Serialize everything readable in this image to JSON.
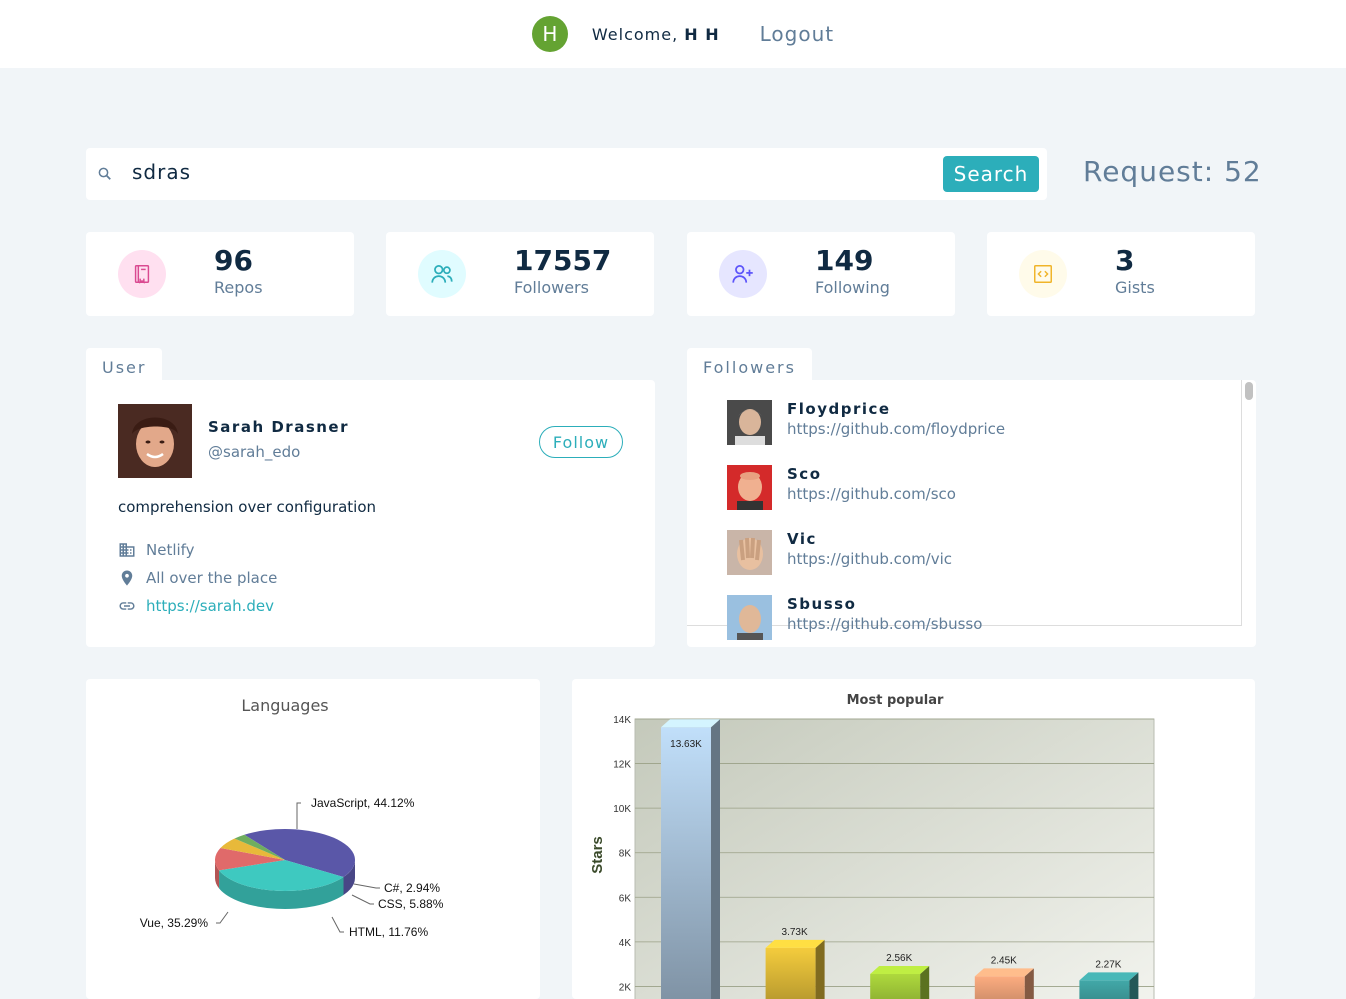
{
  "nav": {
    "avatar_letter": "H",
    "welcome_prefix": "Welcome,",
    "user_name": "H H",
    "logout_label": "Logout"
  },
  "search": {
    "value": "sdras",
    "button_label": "Search",
    "requests_label": "Request: 52"
  },
  "stats": [
    {
      "value": "96",
      "label": "Repos",
      "icon": "book-icon",
      "color": "#da4a91",
      "bg": "#ffe0f0"
    },
    {
      "value": "17557",
      "label": "Followers",
      "icon": "users-icon",
      "color": "#2caeba",
      "bg": "#e0fcff"
    },
    {
      "value": "149",
      "label": "Following",
      "icon": "user-plus-icon",
      "color": "#5d55fa",
      "bg": "#e6e6ff"
    },
    {
      "value": "3",
      "label": "Gists",
      "icon": "code-icon",
      "color": "#f0b429",
      "bg": "#fffbea"
    }
  ],
  "user": {
    "tab_label": "User",
    "name": "Sarah Drasner",
    "handle": "@sarah_edo",
    "follow_label": "Follow",
    "bio": "comprehension over configuration",
    "company": "Netlify",
    "location": "All over the place",
    "blog": "https://sarah.dev"
  },
  "followers": {
    "tab_label": "Followers",
    "items": [
      {
        "name": "Floydprice",
        "url": "https://github.com/floydprice"
      },
      {
        "name": "Sco",
        "url": "https://github.com/sco"
      },
      {
        "name": "Vic",
        "url": "https://github.com/vic"
      },
      {
        "name": "Sbusso",
        "url": "https://github.com/sbusso"
      }
    ]
  },
  "colors": {
    "accent": "#2caeba",
    "text_dark": "#102a42",
    "text_muted": "#617d98"
  },
  "chart_data": [
    {
      "type": "pie",
      "title": "Languages",
      "slices": [
        {
          "label": "JavaScript",
          "value": 44.12,
          "display": "JavaScript, 44.12%",
          "color": "#5a57a8"
        },
        {
          "label": "Vue",
          "value": 35.29,
          "display": "Vue, 35.29%",
          "color": "#3ec9c0"
        },
        {
          "label": "HTML",
          "value": 11.76,
          "display": "HTML, 11.76%",
          "color": "#e06a6a"
        },
        {
          "label": "CSS",
          "value": 5.88,
          "display": "CSS, 5.88%",
          "color": "#e8b93a"
        },
        {
          "label": "C#",
          "value": 2.94,
          "display": "C#, 2.94%",
          "color": "#6fae5f"
        }
      ]
    },
    {
      "type": "bar",
      "title": "Most popular",
      "ylabel": "Stars",
      "ylim": [
        0,
        14000
      ],
      "yticks": [
        "2K",
        "4K",
        "6K",
        "8K",
        "10K",
        "12K",
        "14K"
      ],
      "ytick_values": [
        2000,
        4000,
        6000,
        8000,
        10000,
        12000,
        14000
      ],
      "values": [
        13630,
        3730,
        2560,
        2450,
        2270
      ],
      "value_labels": [
        "13.63K",
        "3.73K",
        "2.56K",
        "2.45K",
        "2.27K"
      ],
      "bar_colors": [
        "#b8d4ee",
        "#e8c23a",
        "#a6cf3a",
        "#f0a47a",
        "#3fa0a0"
      ]
    }
  ]
}
